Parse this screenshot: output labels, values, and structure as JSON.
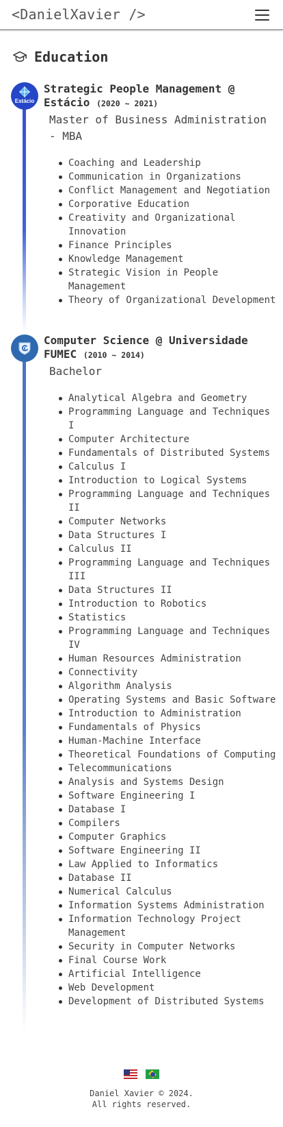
{
  "navbar": {
    "brand": "<DanielXavier />",
    "menu_icon": "hamburger-menu-icon"
  },
  "section": {
    "icon": "graduation-cap-icon",
    "title": "Education"
  },
  "education": [
    {
      "logo_label": "Estácio",
      "title": "Strategic People Management @ Estácio",
      "dates": "(2020 ~ 2021)",
      "degree": "Master of Business Administration - MBA",
      "courses": [
        "Coaching and Leadership",
        "Communication in Organizations",
        "Conflict Management and Negotiation",
        "Corporative Education",
        "Creativity and Organizational Innovation",
        "Finance Principles",
        "Knowledge Management",
        "Strategic Vision in People Management",
        "Theory of Organizational Development"
      ]
    },
    {
      "logo_label": "",
      "title": "Computer Science @ Universidade FUMEC",
      "dates": "(2010 ~ 2014)",
      "degree": "Bachelor",
      "courses": [
        "Analytical Algebra and Geometry",
        "Programming Language and Techniques I",
        "Computer Architecture",
        "Fundamentals of Distributed Systems",
        "Calculus I",
        "Introduction to Logical Systems",
        "Programming Language and Techniques II",
        "Computer Networks",
        "Data Structures I",
        "Calculus II",
        "Programming Language and Techniques III",
        "Data Structures II",
        "Introduction to Robotics",
        "Statistics",
        "Programming Language and Techniques IV",
        "Human Resources Administration",
        "Connectivity",
        "Algorithm Analysis",
        "Operating Systems and Basic Software",
        "Introduction to Administration",
        "Fundamentals of Physics",
        "Human-Machine Interface",
        "Theoretical Foundations of Computing",
        "Telecommunications",
        "Analysis and Systems Design",
        "Software Engineering I",
        "Database I",
        "Compilers",
        "Computer Graphics",
        "Software Engineering II",
        "Law Applied to Informatics",
        "Database II",
        "Numerical Calculus",
        "Information Systems Administration",
        "Information Technology Project Management",
        "Security in Computer Networks",
        "Final Course Work",
        "Artificial Intelligence",
        "Web Development",
        "Development of Distributed Systems"
      ]
    }
  ],
  "footer": {
    "flags": [
      "us-flag-icon",
      "brazil-flag-icon"
    ],
    "copyright_line1": "Daniel Xavier © 2024.",
    "copyright_line2": "All rights reserved."
  },
  "colors": {
    "estacio_blue": "#2546c7",
    "fumec_blue": "#2f69b0",
    "timeline_top": "#3a4fd0"
  }
}
